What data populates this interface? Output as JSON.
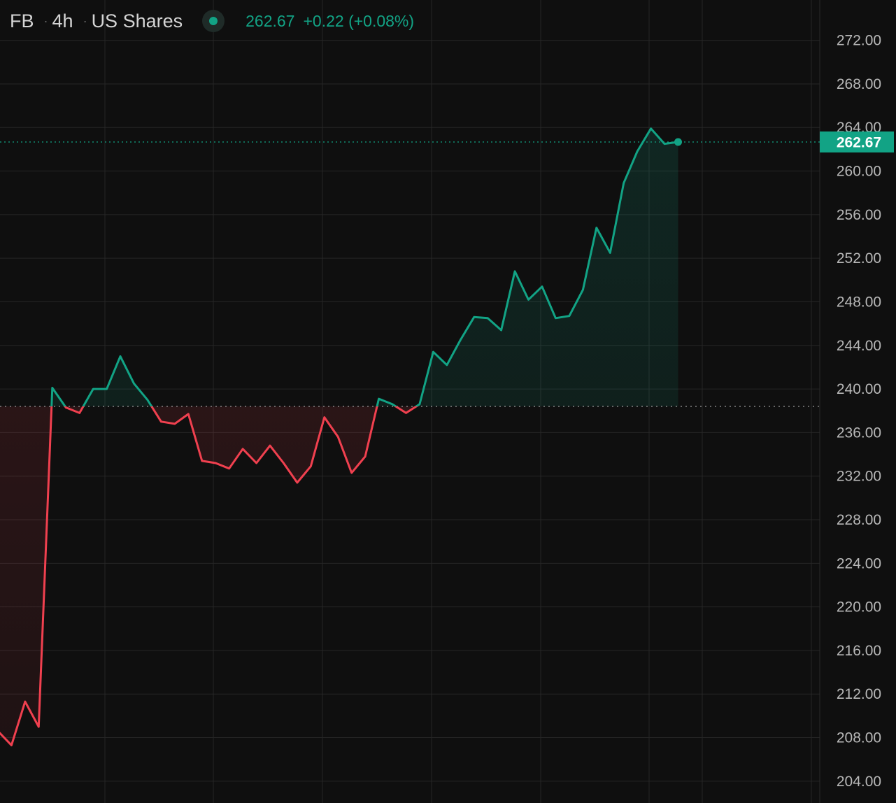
{
  "legend": {
    "symbol": "FB",
    "interval": "4h",
    "market": "US Shares",
    "price": "262.67",
    "change": "+0.22 (+0.08%)"
  },
  "colors": {
    "background": "#0f0f0f",
    "grid": "#262626",
    "up": "#12a385",
    "down": "#f0404f",
    "axis_text": "#b8b8b8",
    "baseline": "#9a9a9a"
  },
  "chart_data": {
    "type": "line",
    "title": "",
    "xlabel": "",
    "ylabel": "",
    "ylim": [
      202,
      275.7
    ],
    "y_ticks": [
      "272.00",
      "268.00",
      "264.00",
      "260.00",
      "256.00",
      "252.00",
      "248.00",
      "244.00",
      "240.00",
      "236.00",
      "232.00",
      "228.00",
      "224.00",
      "220.00",
      "216.00",
      "212.00",
      "208.00",
      "204.00"
    ],
    "baseline": 238.4,
    "last_value": 262.67,
    "last_label": "262.67",
    "grid": true,
    "series": [
      {
        "values": [
          208.6,
          207.3,
          211.3,
          209.0,
          240.1,
          238.3,
          237.8,
          240.0,
          240.0,
          243.0,
          240.5,
          239.0,
          237.0,
          236.8,
          237.7,
          233.4,
          233.2,
          232.7,
          234.5,
          233.2,
          234.8,
          233.2,
          231.4,
          232.9,
          237.4,
          235.6,
          232.3,
          233.8,
          239.1,
          238.6,
          237.8,
          238.6,
          243.4,
          242.2,
          244.5,
          246.6,
          246.5,
          245.4,
          250.8,
          248.2,
          249.4,
          246.5,
          246.7,
          249.1,
          254.8,
          252.5,
          258.9,
          261.8,
          263.9,
          262.5,
          262.67
        ]
      }
    ]
  }
}
